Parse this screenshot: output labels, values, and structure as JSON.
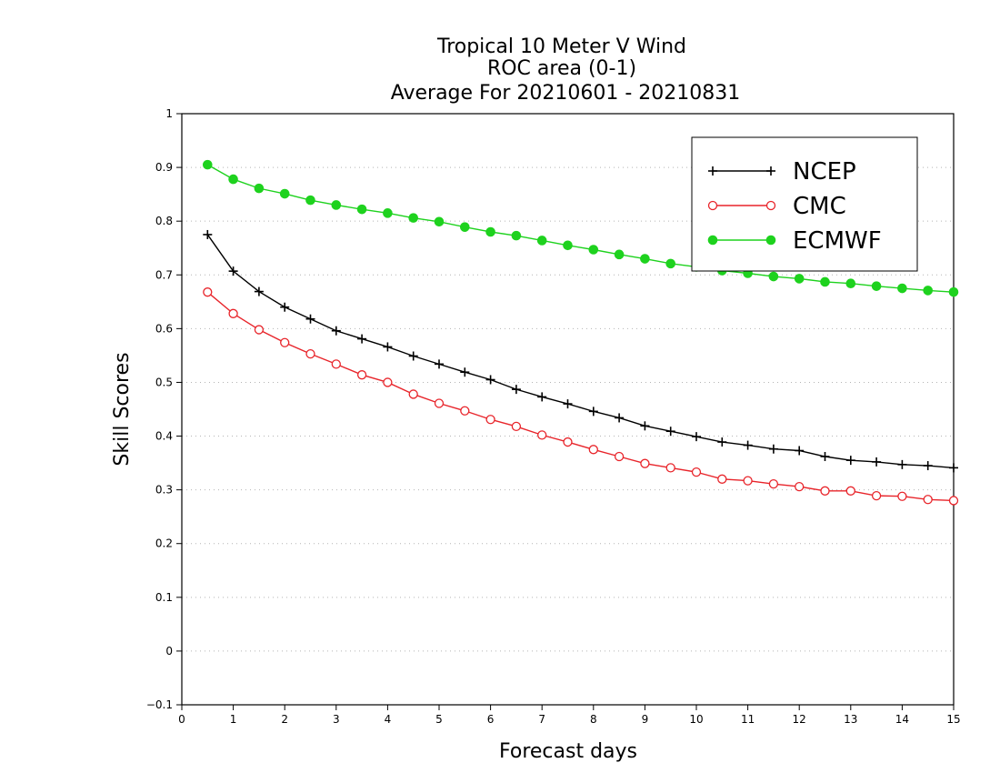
{
  "chart_data": {
    "type": "line",
    "title_lines": [
      "Tropical 10 Meter V Wind",
      "ROC area (0-1)",
      "Average For 20210601 - 20210831"
    ],
    "xlabel": "Forecast days",
    "ylabel": "Skill Scores",
    "xlim": [
      0,
      15
    ],
    "ylim": [
      -0.1,
      1
    ],
    "x_ticks": [
      "0",
      "1",
      "2",
      "3",
      "4",
      "5",
      "6",
      "7",
      "8",
      "9",
      "10",
      "11",
      "12",
      "13",
      "14",
      "15"
    ],
    "y_ticks": [
      "−0.1",
      "0",
      "0.1",
      "0.2",
      "0.3",
      "0.4",
      "0.5",
      "0.6",
      "0.7",
      "0.8",
      "0.9",
      "1"
    ],
    "grid": "dotted horizontal",
    "legend_position": "top-right",
    "x": [
      0.5,
      1,
      1.5,
      2,
      2.5,
      3,
      3.5,
      4,
      4.5,
      5,
      5.5,
      6,
      6.5,
      7,
      7.5,
      8,
      8.5,
      9,
      9.5,
      10,
      10.5,
      11,
      11.5,
      12,
      12.5,
      13,
      13.5,
      14,
      14.5,
      15
    ],
    "series": [
      {
        "name": "NCEP",
        "color": "#000000",
        "marker": "plus",
        "values": [
          0.775,
          0.707,
          0.669,
          0.64,
          0.618,
          0.596,
          0.581,
          0.566,
          0.549,
          0.534,
          0.519,
          0.505,
          0.487,
          0.473,
          0.46,
          0.446,
          0.434,
          0.419,
          0.409,
          0.399,
          0.389,
          0.383,
          0.376,
          0.373,
          0.362,
          0.355,
          0.352,
          0.347,
          0.345,
          0.341
        ]
      },
      {
        "name": "CMC",
        "color": "#e8242a",
        "marker": "open-circle",
        "values": [
          0.668,
          0.628,
          0.598,
          0.574,
          0.553,
          0.534,
          0.514,
          0.5,
          0.478,
          0.461,
          0.447,
          0.431,
          0.418,
          0.402,
          0.389,
          0.375,
          0.362,
          0.349,
          0.341,
          0.333,
          0.32,
          0.317,
          0.311,
          0.306,
          0.298,
          0.298,
          0.289,
          0.288,
          0.282,
          0.28
        ]
      },
      {
        "name": "ECMWF",
        "color": "#1ed21e",
        "marker": "filled-circle",
        "values": [
          0.905,
          0.878,
          0.861,
          0.851,
          0.839,
          0.83,
          0.822,
          0.815,
          0.806,
          0.799,
          0.789,
          0.78,
          0.773,
          0.764,
          0.755,
          0.747,
          0.738,
          0.73,
          0.721,
          0.715,
          0.708,
          0.703,
          0.697,
          0.693,
          0.687,
          0.684,
          0.679,
          0.675,
          0.671,
          0.668
        ]
      }
    ]
  }
}
